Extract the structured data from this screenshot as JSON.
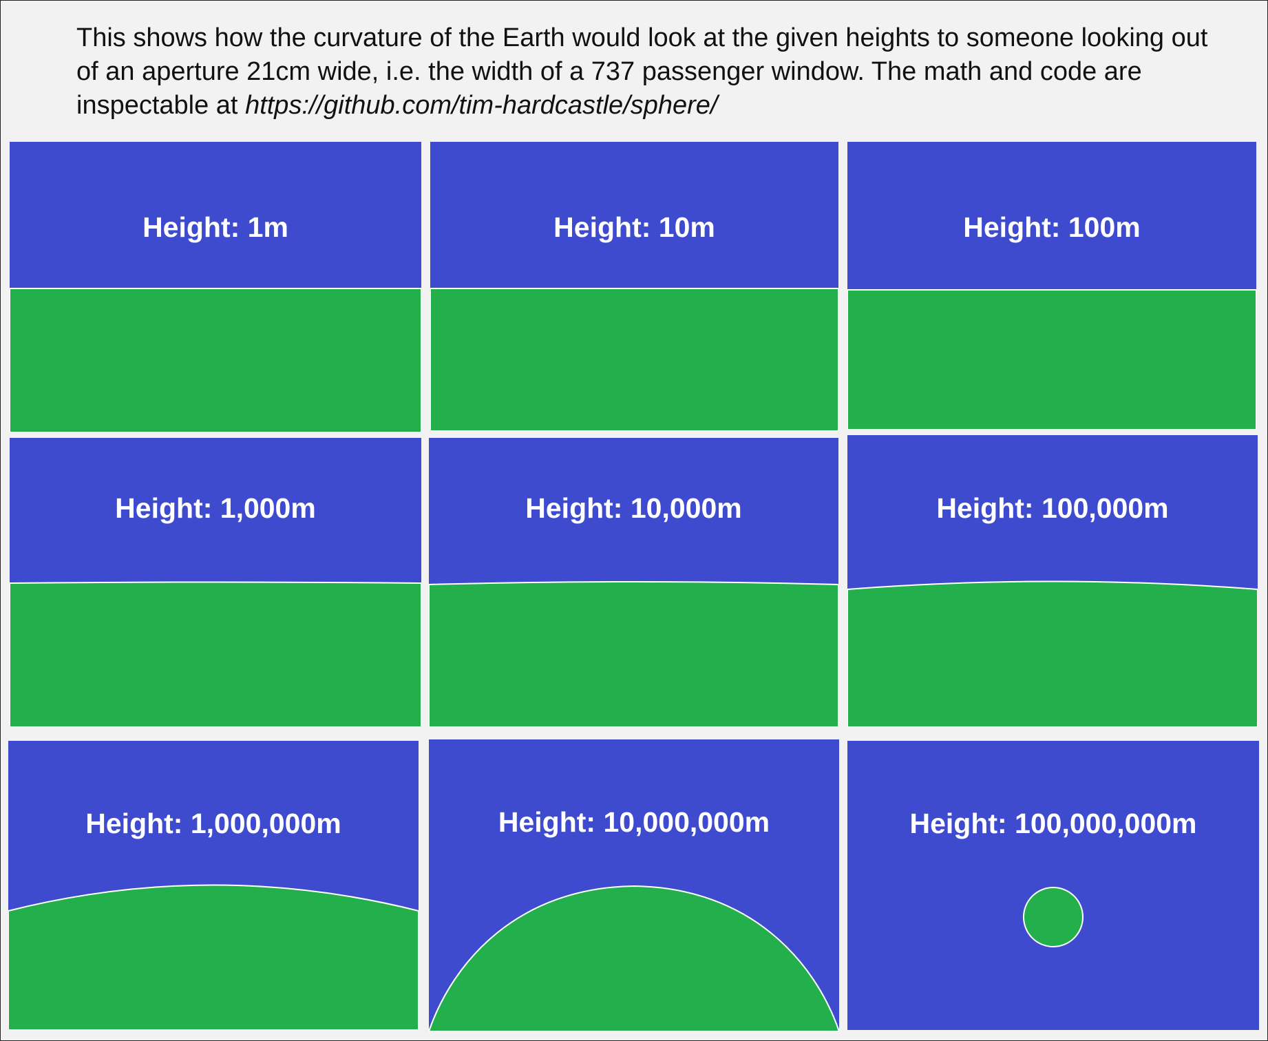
{
  "caption": {
    "lead": "This shows how the curvature of the Earth would look at the given heights to someone looking out of an aperture 21cm wide, i.e. the width of a 737 passenger window. The math and code are inspectable at ",
    "url": "https://github.com/tim-hardcastle/sphere/"
  },
  "colors": {
    "sky": "#3f4bce",
    "earth": "#23b04c",
    "background": "#f2f2f2",
    "outline": "#ffffff"
  },
  "panels": [
    {
      "label": "Height: 1m",
      "height_m": 1
    },
    {
      "label": "Height: 10m",
      "height_m": 10
    },
    {
      "label": "Height: 100m",
      "height_m": 100
    },
    {
      "label": "Height: 1,000m",
      "height_m": 1000
    },
    {
      "label": "Height: 10,000m",
      "height_m": 10000
    },
    {
      "label": "Height: 100,000m",
      "height_m": 100000
    },
    {
      "label": "Height: 1,000,000m",
      "height_m": 1000000
    },
    {
      "label": "Height: 10,000,000m",
      "height_m": 10000000
    },
    {
      "label": "Height: 100,000,000m",
      "height_m": 100000000
    }
  ]
}
